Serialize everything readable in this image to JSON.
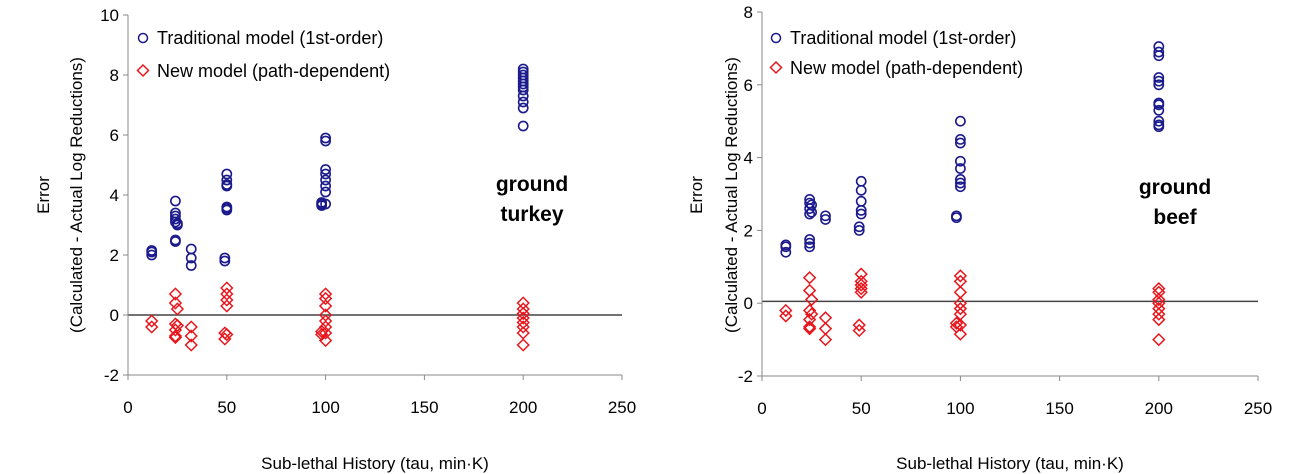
{
  "chart_data": [
    {
      "type": "scatter",
      "xlabel": "Sub-lethal History (tau, min·K)",
      "ylabel": [
        "Error",
        "(Calculated - Actual Log Reductions)"
      ],
      "xlim": [
        0,
        250
      ],
      "ylim": [
        -2,
        10
      ],
      "xticks": [
        0,
        50,
        100,
        150,
        200,
        250
      ],
      "yticks": [
        -2,
        0,
        2,
        4,
        6,
        8,
        10
      ],
      "annotation": [
        "ground",
        "turkey"
      ],
      "legend_position": "top-left",
      "reference_line_y": 0,
      "series": [
        {
          "name": "Traditional model (1st-order)",
          "marker": "circle",
          "color": "#1a1a8c",
          "x": [
            12,
            12,
            12,
            24,
            24,
            24,
            24,
            24,
            24,
            24,
            25,
            25,
            32,
            32,
            32,
            49,
            49,
            50,
            50,
            50,
            50,
            50,
            50,
            50,
            98,
            98,
            98,
            100,
            100,
            100,
            100,
            100,
            100,
            100,
            100,
            200,
            200,
            200,
            200,
            200,
            200,
            200,
            200,
            200,
            200,
            200,
            200
          ],
          "y": [
            2.0,
            2.1,
            2.15,
            3.8,
            3.4,
            3.3,
            3.2,
            3.1,
            2.5,
            2.45,
            3.0,
            3.05,
            2.2,
            1.9,
            1.65,
            1.9,
            1.8,
            4.7,
            4.5,
            4.35,
            4.3,
            3.6,
            3.55,
            3.5,
            3.75,
            3.7,
            3.65,
            5.9,
            5.8,
            4.85,
            4.7,
            4.5,
            4.3,
            4.1,
            3.7,
            8.2,
            8.1,
            8.0,
            7.9,
            7.8,
            7.7,
            7.6,
            7.5,
            7.3,
            7.1,
            6.9,
            6.3
          ]
        },
        {
          "name": "New model (path-dependent)",
          "marker": "diamond",
          "color": "#e8161c",
          "x": [
            12,
            12,
            24,
            24,
            24,
            24,
            24,
            24,
            25,
            25,
            32,
            32,
            32,
            49,
            49,
            50,
            50,
            50,
            50,
            50,
            98,
            98,
            100,
            100,
            100,
            100,
            100,
            100,
            100,
            100,
            200,
            200,
            200,
            200,
            200,
            200,
            200,
            200
          ],
          "y": [
            -0.2,
            -0.4,
            0.7,
            0.4,
            -0.3,
            -0.5,
            -0.7,
            -0.75,
            0.2,
            -0.35,
            -0.4,
            -0.7,
            -1.0,
            -0.6,
            -0.8,
            0.9,
            0.7,
            0.5,
            0.3,
            -0.65,
            -0.55,
            -0.65,
            0.7,
            0.55,
            0.3,
            0.0,
            -0.2,
            -0.4,
            -0.6,
            -0.85,
            0.4,
            0.2,
            0.05,
            -0.1,
            -0.25,
            -0.4,
            -0.6,
            -1.0
          ]
        }
      ]
    },
    {
      "type": "scatter",
      "xlabel": "Sub-lethal History (tau, min·K)",
      "ylabel": [
        "Error",
        "(Calculated - Actual Log Reductions)"
      ],
      "xlim": [
        0,
        250
      ],
      "ylim": [
        -2,
        8
      ],
      "xticks": [
        0,
        50,
        100,
        150,
        200,
        250
      ],
      "yticks": [
        -2,
        0,
        2,
        4,
        6,
        8
      ],
      "annotation": [
        "ground",
        "beef"
      ],
      "legend_position": "top-left",
      "reference_line_y": 0.05,
      "series": [
        {
          "name": "Traditional model (1st-order)",
          "marker": "circle",
          "color": "#1a1a8c",
          "x": [
            12,
            12,
            12,
            24,
            24,
            24,
            24,
            24,
            24,
            24,
            25,
            25,
            32,
            32,
            49,
            49,
            50,
            50,
            50,
            50,
            50,
            98,
            98,
            100,
            100,
            100,
            100,
            100,
            100,
            100,
            100,
            200,
            200,
            200,
            200,
            200,
            200,
            200,
            200,
            200,
            200,
            200,
            200
          ],
          "y": [
            1.4,
            1.55,
            1.6,
            2.85,
            2.75,
            2.6,
            2.45,
            1.75,
            1.65,
            1.55,
            2.7,
            2.5,
            2.4,
            2.3,
            2.1,
            2.0,
            3.35,
            3.1,
            2.8,
            2.55,
            2.45,
            2.4,
            2.35,
            5.0,
            4.5,
            4.4,
            3.9,
            3.7,
            3.4,
            3.3,
            3.2,
            7.05,
            6.9,
            6.8,
            6.2,
            6.1,
            6.0,
            5.5,
            5.45,
            5.3,
            5.0,
            4.9,
            4.85
          ]
        },
        {
          "name": "New model (path-dependent)",
          "marker": "diamond",
          "color": "#e8161c",
          "x": [
            12,
            12,
            24,
            24,
            24,
            24,
            24,
            24,
            25,
            25,
            32,
            32,
            32,
            49,
            49,
            50,
            50,
            50,
            50,
            50,
            98,
            98,
            100,
            100,
            100,
            100,
            100,
            100,
            100,
            100,
            200,
            200,
            200,
            200,
            200,
            200,
            200,
            200
          ],
          "y": [
            -0.2,
            -0.35,
            0.7,
            0.35,
            -0.2,
            -0.45,
            -0.65,
            -0.7,
            0.1,
            -0.3,
            -0.4,
            -0.7,
            -1.0,
            -0.6,
            -0.75,
            0.8,
            0.6,
            0.5,
            0.4,
            0.3,
            -0.55,
            -0.65,
            0.75,
            0.6,
            0.3,
            0.0,
            -0.15,
            -0.3,
            -0.6,
            -0.85,
            0.4,
            0.3,
            0.1,
            0.0,
            -0.15,
            -0.3,
            -0.45,
            -1.0
          ]
        }
      ]
    }
  ]
}
